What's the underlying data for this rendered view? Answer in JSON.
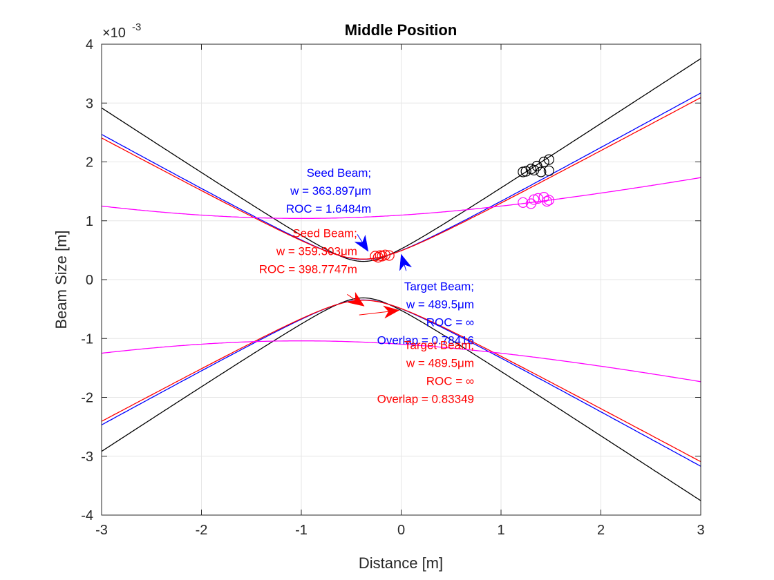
{
  "chart_data": {
    "type": "line",
    "title": "Middle Position",
    "xlabel": "Distance [m]",
    "ylabel": "Beam Size [m]",
    "xlim": [
      -3,
      3
    ],
    "ylim": [
      -0.004,
      0.004
    ],
    "y_exponent_label": "-3",
    "x_ticks": [
      -3,
      -2,
      -1,
      0,
      1,
      2,
      3
    ],
    "x_tick_labels": [
      "-3",
      "-2",
      "-1",
      "0",
      "1",
      "2",
      "3"
    ],
    "y_ticks": [
      -0.004,
      -0.003,
      -0.002,
      -0.001,
      0,
      0.001,
      0.002,
      0.003,
      0.004
    ],
    "y_tick_labels": [
      "-4",
      "-3",
      "-2",
      "-1",
      "0",
      "1",
      "2",
      "3",
      "4"
    ],
    "grid": true,
    "series": [
      {
        "color": "#000000",
        "waist_m": 0.00031,
        "waist_pos_m": -0.38,
        "rayleigh_m": 0.28,
        "symmetric": true
      },
      {
        "color": "#0000ff",
        "waist_m": 0.000345,
        "waist_pos_m": -0.38,
        "rayleigh_m": 0.37,
        "symmetric": true
      },
      {
        "color": "#ff0000",
        "waist_m": 0.00035,
        "waist_pos_m": -0.38,
        "rayleigh_m": 0.385,
        "symmetric": true
      },
      {
        "color": "#ff00ff",
        "waist_m": 0.00104,
        "waist_pos_m": -1.0,
        "rayleigh_m": 3.0,
        "symmetric": true
      }
    ],
    "markers": [
      {
        "color": "#000000",
        "points": [
          [
            1.22,
            0.00183
          ],
          [
            1.25,
            0.00184
          ],
          [
            1.3,
            0.00188
          ],
          [
            1.33,
            0.00186
          ],
          [
            1.36,
            0.00193
          ],
          [
            1.4,
            0.00183
          ],
          [
            1.43,
            0.002
          ],
          [
            1.48,
            0.00204
          ],
          [
            1.48,
            0.00185
          ]
        ]
      },
      {
        "color": "#ff00ff",
        "points": [
          [
            1.22,
            0.00131
          ],
          [
            1.3,
            0.00129
          ],
          [
            1.33,
            0.00136
          ],
          [
            1.37,
            0.00138
          ],
          [
            1.43,
            0.0014
          ],
          [
            1.46,
            0.00133
          ],
          [
            1.48,
            0.00135
          ]
        ]
      },
      {
        "color": "#ff0000",
        "points": [
          [
            -0.26,
            0.0004
          ],
          [
            -0.23,
            0.00038
          ],
          [
            -0.21,
            0.00041
          ],
          [
            -0.19,
            0.0004
          ],
          [
            -0.16,
            0.00042
          ],
          [
            -0.12,
            0.00041
          ]
        ]
      }
    ],
    "arrows": [
      {
        "color": "#0000ff",
        "from": [
          -0.44,
          0.00077
        ],
        "to": [
          -0.33,
          0.00048
        ]
      },
      {
        "color": "#0000ff",
        "from": [
          0.05,
          0.00015
        ],
        "to": [
          0.0,
          0.00043
        ]
      },
      {
        "color": "#ff0000",
        "from": [
          -0.54,
          -0.00025
        ],
        "to": [
          -0.37,
          -0.00045
        ]
      },
      {
        "color": "#ff0000",
        "from": [
          -0.42,
          -0.0006
        ],
        "to": [
          -0.02,
          -0.00052
        ]
      }
    ],
    "annotations": [
      {
        "color": "#0000ff",
        "lines": [
          "Seed Beam;",
          "w = 363.897μm",
          "ROC = 1.6484m"
        ],
        "x": -0.3,
        "y": 0.00175
      },
      {
        "color": "#ff0000",
        "lines": [
          "Seed Beam;",
          "w = 359.303μm",
          "ROC = 398.7747m"
        ],
        "x": -0.44,
        "y": 0.00072
      },
      {
        "color": "#0000ff",
        "lines": [
          "Target Beam;",
          "w = 489.5μm",
          "ROC = ∞",
          "Overlap = 0.78416"
        ],
        "x": 0.73,
        "y": -0.00018
      },
      {
        "color": "#ff0000",
        "lines": [
          "Target Beam;",
          "w = 489.5μm",
          "ROC = ∞",
          "Overlap = 0.83349"
        ],
        "x": 0.73,
        "y": -0.00118
      }
    ]
  }
}
